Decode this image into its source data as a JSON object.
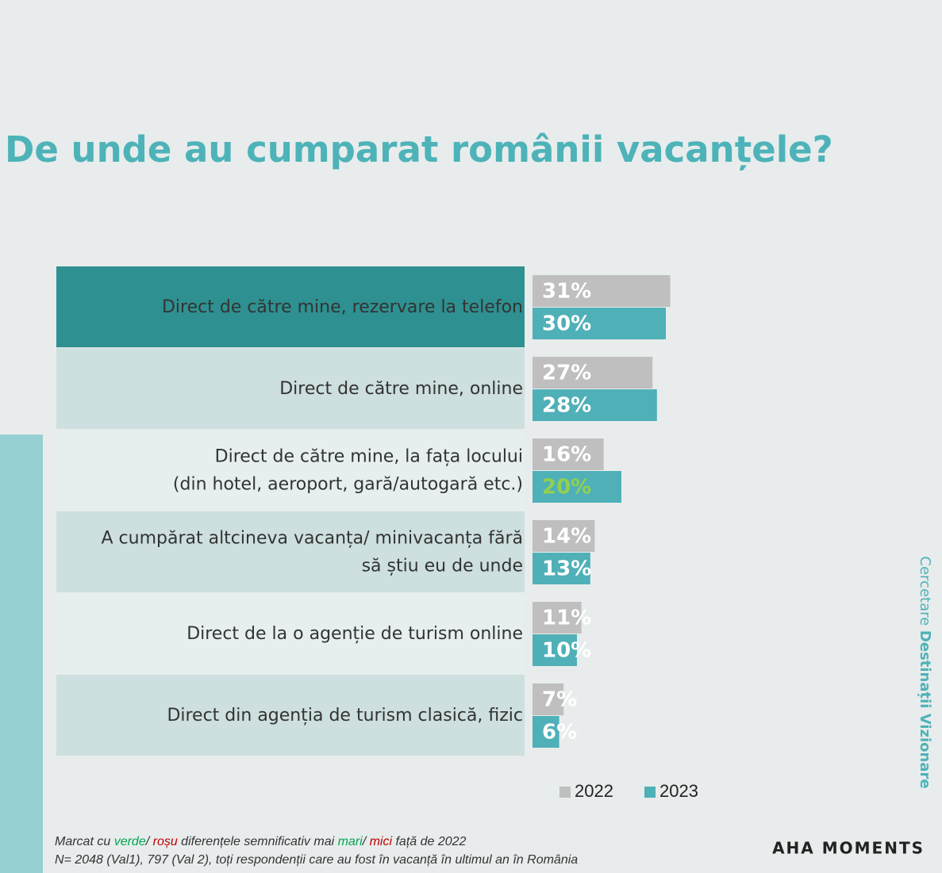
{
  "chart_data": {
    "type": "hbar-grouped",
    "title": "De unde au cumparat românii vacanțele?",
    "categories": [
      [
        "Direct de către mine, rezervare la telefon"
      ],
      [
        "Direct de către mine, online"
      ],
      [
        "Direct de către mine, la fața locului",
        "(din hotel, aeroport, gară/autogară etc.)"
      ],
      [
        "A cumpărat altcineva vacanța/ minivacanța fără",
        "să știu eu de unde"
      ],
      [
        "Direct de la o agenție de turism online"
      ],
      [
        "Direct din agenția de turism clasică, fizic"
      ]
    ],
    "series": [
      {
        "name": "2022",
        "color": "#bfbfbf",
        "values": [
          31,
          27,
          16,
          14,
          11,
          7
        ],
        "value_labels": [
          "31%",
          "27%",
          "16%",
          "14%",
          "11%",
          "7%"
        ],
        "value_label_colors": [
          "#ffffff",
          "#ffffff",
          "#ffffff",
          "#ffffff",
          "#ffffff",
          "#ffffff"
        ]
      },
      {
        "name": "2023",
        "color": "#4fb0b8",
        "values": [
          30,
          28,
          20,
          13,
          10,
          6
        ],
        "value_labels": [
          "30%",
          "28%",
          "20%",
          "13%",
          "10%",
          "6%"
        ],
        "value_label_colors": [
          "#ffffff",
          "#ffffff",
          "#92d050",
          "#ffffff",
          "#ffffff",
          "#ffffff"
        ]
      }
    ],
    "note_parts": [
      {
        "text": "Marcat cu ",
        "color": "#333333"
      },
      {
        "text": "verde",
        "color": "#00a650"
      },
      {
        "text": "/ ",
        "color": "#333333"
      },
      {
        "text": "roșu",
        "color": "#c00000"
      },
      {
        "text": " diferențele semnificativ mai ",
        "color": "#333333"
      },
      {
        "text": "mari",
        "color": "#00a650"
      },
      {
        "text": "/ ",
        "color": "#333333"
      },
      {
        "text": "mici",
        "color": "#c00000"
      },
      {
        "text": " față de 2022",
        "color": "#333333"
      }
    ],
    "note2": "N= 2048 (Val1), 797 (Val 2), toți respondenții care au fost în vacanță în ultimul an în România",
    "side_text": [
      "Cercetare ",
      "Destinații Vizionare"
    ],
    "logo": "AHA MOMENTS"
  }
}
